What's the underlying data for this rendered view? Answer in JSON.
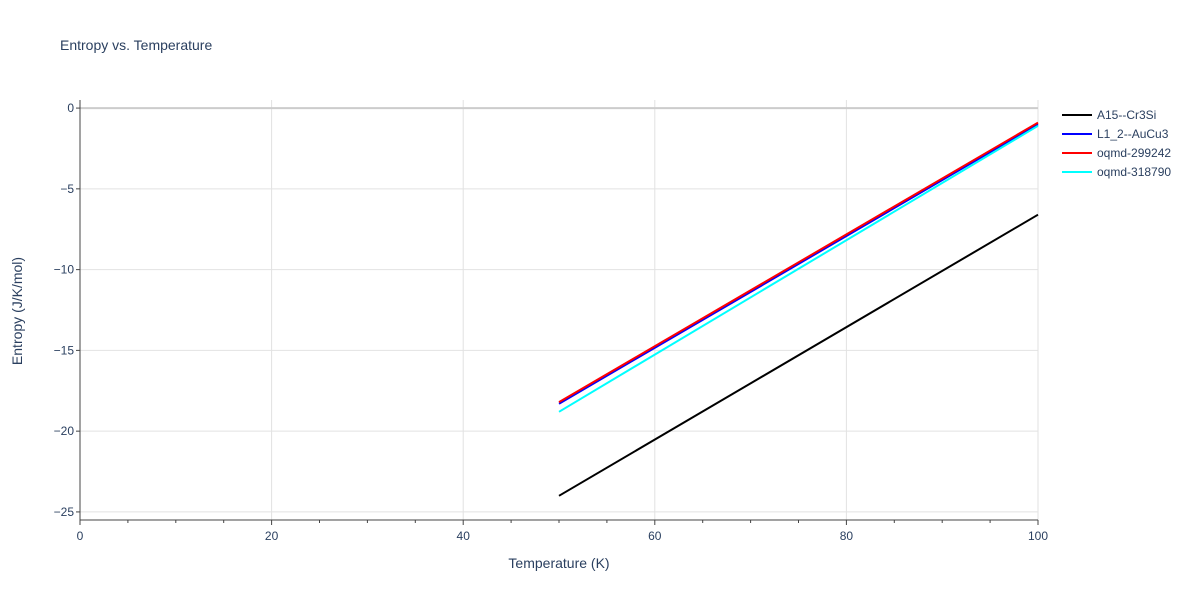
{
  "chart_data": {
    "type": "line",
    "title": "Entropy vs. Temperature",
    "xlabel": "Temperature (K)",
    "ylabel": "Entropy (J/K/mol)",
    "xlim": [
      0,
      100
    ],
    "ylim": [
      -25.5,
      0.5
    ],
    "x_ticks": [
      0,
      20,
      40,
      60,
      80,
      100
    ],
    "x_tick_labels": [
      "0",
      "20",
      "40",
      "60",
      "80",
      "100"
    ],
    "y_ticks": [
      0,
      -5,
      -10,
      -15,
      -20,
      -25
    ],
    "y_tick_labels": [
      "0",
      "−5",
      "−10",
      "−15",
      "−20",
      "−25"
    ],
    "grid": true,
    "legend_position": "top-right",
    "series": [
      {
        "name": "A15--Cr3Si",
        "color": "#000000",
        "x": [
          50,
          100
        ],
        "y": [
          -24.0,
          -6.6
        ]
      },
      {
        "name": "L1_2--AuCu3",
        "color": "#0000ff",
        "x": [
          50,
          100
        ],
        "y": [
          -18.3,
          -1.0
        ]
      },
      {
        "name": "oqmd-299242",
        "color": "#ff0000",
        "x": [
          50,
          100
        ],
        "y": [
          -18.2,
          -0.9
        ]
      },
      {
        "name": "oqmd-318790",
        "color": "#00ffff",
        "x": [
          50,
          100
        ],
        "y": [
          -18.8,
          -1.1
        ]
      }
    ]
  }
}
